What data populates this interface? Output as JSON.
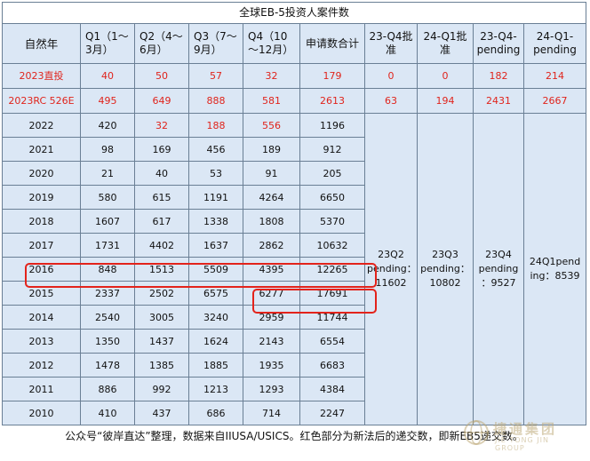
{
  "title": "全球EB-5投资人案件数",
  "headers": [
    "自然年",
    "Q1（1～3月）",
    "Q2（4～6月）",
    "Q3（7～9月）",
    "Q4（10～12月）",
    "申请数合计",
    "23-Q4批准",
    "24-Q1批准",
    "23-Q4-pending",
    "24-Q1-pending"
  ],
  "red_rows": [
    {
      "label": "2023直投",
      "q1": "40",
      "q2": "50",
      "q3": "57",
      "q4": "32",
      "total": "179",
      "a": "0",
      "b": "0",
      "c": "182",
      "d": "214"
    },
    {
      "label": "2023RC 526E",
      "q1": "495",
      "q2": "649",
      "q3": "888",
      "q4": "581",
      "total": "2613",
      "a": "63",
      "b": "194",
      "c": "2431",
      "d": "2667"
    }
  ],
  "rows": [
    {
      "year": "2022",
      "q1": "420",
      "q2": "32",
      "q3": "188",
      "q4": "556",
      "total": "1196"
    },
    {
      "year": "2021",
      "q1": "98",
      "q2": "169",
      "q3": "456",
      "q4": "189",
      "total": "912"
    },
    {
      "year": "2020",
      "q1": "21",
      "q2": "40",
      "q3": "53",
      "q4": "91",
      "total": "205"
    },
    {
      "year": "2019",
      "q1": "580",
      "q2": "615",
      "q3": "1191",
      "q4": "4264",
      "total": "6650"
    },
    {
      "year": "2018",
      "q1": "1607",
      "q2": "617",
      "q3": "1338",
      "q4": "1808",
      "total": "5370"
    },
    {
      "year": "2017",
      "q1": "1731",
      "q2": "4402",
      "q3": "1637",
      "q4": "2862",
      "total": "10632"
    },
    {
      "year": "2016",
      "q1": "848",
      "q2": "1513",
      "q3": "5509",
      "q4": "4395",
      "total": "12265"
    },
    {
      "year": "2015",
      "q1": "2337",
      "q2": "2502",
      "q3": "6575",
      "q4": "6277",
      "total": "17691"
    },
    {
      "year": "2014",
      "q1": "2540",
      "q2": "3005",
      "q3": "3240",
      "q4": "2959",
      "total": "11744"
    },
    {
      "year": "2013",
      "q1": "1350",
      "q2": "1437",
      "q3": "1624",
      "q4": "2143",
      "total": "6554"
    },
    {
      "year": "2012",
      "q1": "1478",
      "q2": "1385",
      "q3": "1885",
      "q4": "1935",
      "total": "6683"
    },
    {
      "year": "2011",
      "q1": "886",
      "q2": "992",
      "q3": "1213",
      "q4": "1293",
      "total": "4384"
    },
    {
      "year": "2010",
      "q1": "410",
      "q2": "437",
      "q3": "686",
      "q4": "714",
      "total": "2247"
    }
  ],
  "merged": {
    "col_a": [
      "23Q2",
      "pending：",
      "11602"
    ],
    "col_b": [
      "23Q3",
      "pending：",
      "10802"
    ],
    "col_c": [
      "23Q4",
      "pending",
      "：9527"
    ],
    "col_d": [
      "24Q1pend",
      "ing：8539"
    ]
  },
  "footer": "公众号“彼岸直达”整理，数据来自IIUSA/USICS。红色部分为新法后的递交数，即新EB5递交数。",
  "watermark": {
    "main": "捷通集团",
    "sub": "JIE TONG JIN GROUP"
  },
  "colors": {
    "cell_bg": "#dbe7f5",
    "red": "#e0241c",
    "border": "#6a7f95",
    "highlight": "#e3231b"
  }
}
